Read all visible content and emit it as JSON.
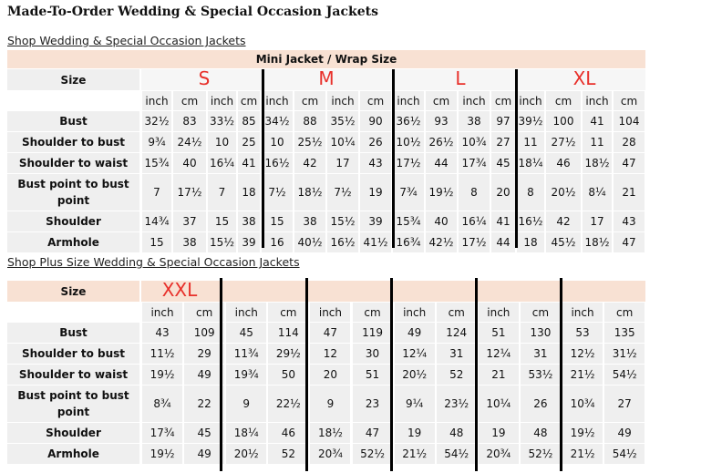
{
  "title": "Made-To-Order Wedding & Special Occasion Jackets",
  "links": [
    "Shop Wedding & Special Occasion Jackets",
    "Shop Plus Size Wedding & Special Occasion Jackets"
  ],
  "tables": [
    {
      "caption": "Mini Jacket / Wrap Size",
      "size_label": "Size",
      "sizes": [
        "S",
        "M",
        "L",
        "XL"
      ],
      "units": [
        "inch",
        "cm",
        "inch",
        "cm",
        "inch",
        "cm",
        "inch",
        "cm",
        "inch",
        "cm",
        "inch",
        "cm",
        "inch",
        "cm",
        "inch",
        "cm"
      ],
      "rows": [
        {
          "label": "Bust",
          "values": [
            "32½",
            "83",
            "33½",
            "85",
            "34½",
            "88",
            "35½",
            "90",
            "36½",
            "93",
            "38",
            "97",
            "39½",
            "100",
            "41",
            "104"
          ]
        },
        {
          "label": "Shoulder to bust",
          "values": [
            "9¾",
            "24½",
            "10",
            "25",
            "10",
            "25½",
            "10¼",
            "26",
            "10½",
            "26½",
            "10¾",
            "27",
            "11",
            "27½",
            "11",
            "28"
          ]
        },
        {
          "label": "Shoulder to waist",
          "values": [
            "15¾",
            "40",
            "16¼",
            "41",
            "16½",
            "42",
            "17",
            "43",
            "17½",
            "44",
            "17¾",
            "45",
            "18¼",
            "46",
            "18½",
            "47"
          ]
        },
        {
          "label": "Bust point to bust point",
          "values": [
            "7",
            "17½",
            "7",
            "18",
            "7½",
            "18½",
            "7½",
            "19",
            "7¾",
            "19½",
            "8",
            "20",
            "8",
            "20½",
            "8¼",
            "21"
          ]
        },
        {
          "label": "Shoulder",
          "values": [
            "14¾",
            "37",
            "15",
            "38",
            "15",
            "38",
            "15½",
            "39",
            "15¾",
            "40",
            "16¼",
            "41",
            "16½",
            "42",
            "17",
            "43"
          ]
        },
        {
          "label": "Armhole",
          "values": [
            "15",
            "38",
            "15½",
            "39",
            "16",
            "40½",
            "16½",
            "41½",
            "16¾",
            "42½",
            "17½",
            "44",
            "18",
            "45½",
            "18½",
            "47"
          ]
        }
      ]
    },
    {
      "size_label": "Size",
      "sizes": [
        "XXL"
      ],
      "units": [
        "inch",
        "cm",
        "inch",
        "cm",
        "inch",
        "cm",
        "inch",
        "cm",
        "inch",
        "cm",
        "inch",
        "cm"
      ],
      "rows": [
        {
          "label": "Bust",
          "values": [
            "43",
            "109",
            "45",
            "114",
            "47",
            "119",
            "49",
            "124",
            "51",
            "130",
            "53",
            "135"
          ]
        },
        {
          "label": "Shoulder to bust",
          "values": [
            "11½",
            "29",
            "11¾",
            "29½",
            "12",
            "30",
            "12¼",
            "31",
            "12¼",
            "31",
            "12½",
            "31½"
          ]
        },
        {
          "label": "Shoulder to waist",
          "values": [
            "19½",
            "49",
            "19¾",
            "50",
            "20",
            "51",
            "20½",
            "52",
            "21",
            "53½",
            "21½",
            "54½"
          ]
        },
        {
          "label": "Bust point to bust point",
          "values": [
            "8¾",
            "22",
            "9",
            "22½",
            "9",
            "23",
            "9¼",
            "23½",
            "10¼",
            "26",
            "10¾",
            "27"
          ]
        },
        {
          "label": "Shoulder",
          "values": [
            "17¾",
            "45",
            "18¼",
            "46",
            "18½",
            "47",
            "19",
            "48",
            "19",
            "48",
            "19½",
            "49"
          ]
        },
        {
          "label": "Armhole",
          "values": [
            "19½",
            "49",
            "20½",
            "52",
            "20¾",
            "52½",
            "21½",
            "54½",
            "20¾",
            "52½",
            "21½",
            "54½"
          ]
        }
      ]
    }
  ]
}
